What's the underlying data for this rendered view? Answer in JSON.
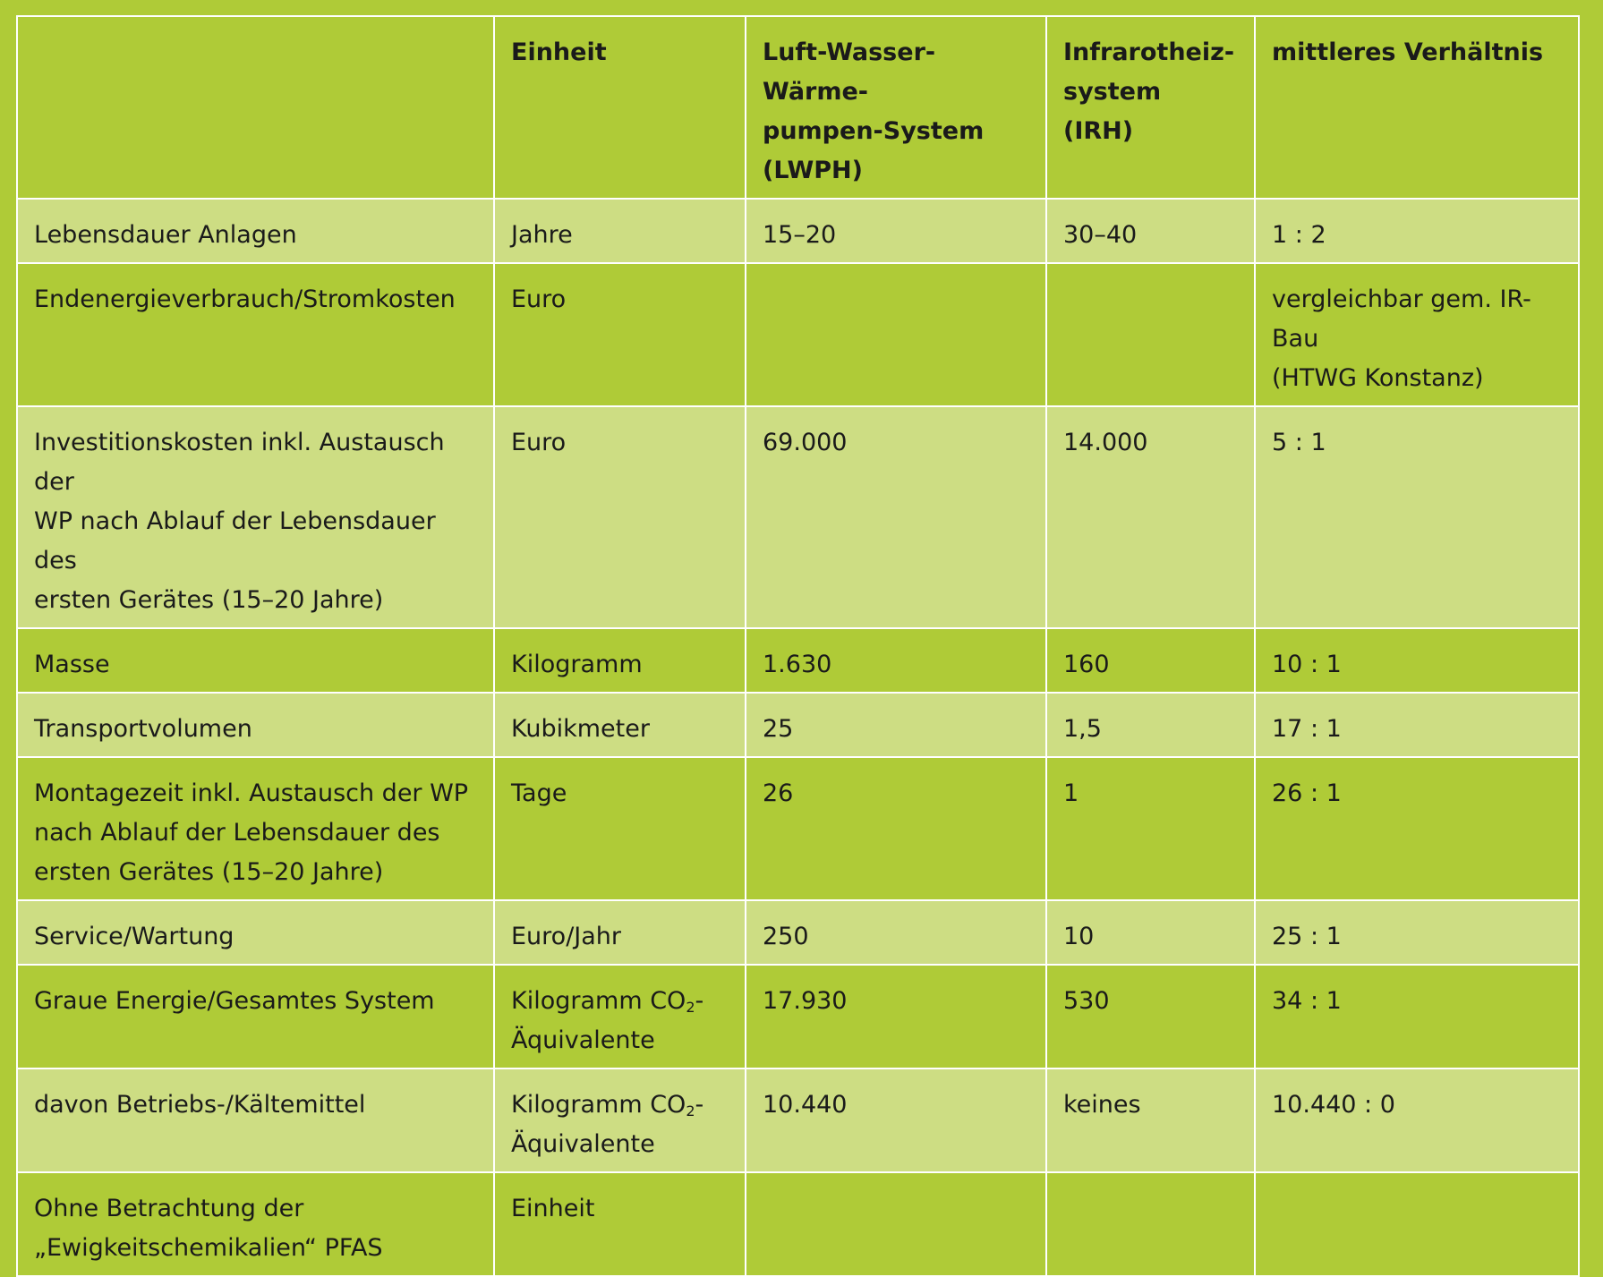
{
  "header": {
    "col0": "",
    "col1": "Einheit",
    "col2_lines": [
      "Luft-Wasser-Wärme-",
      "pumpen-System",
      "(LWPH)"
    ],
    "col3_lines": [
      "Infrarotheiz-",
      "system (IRH)"
    ],
    "col4": "mittleres Verhältnis"
  },
  "rows": [
    {
      "label_lines": [
        "Lebensdauer Anlagen"
      ],
      "unit": "Jahre",
      "lwph": "15–20",
      "irh": "30–40",
      "ratio_lines": [
        "1 : 2"
      ]
    },
    {
      "label_lines": [
        "Endenergieverbrauch/Stromkosten"
      ],
      "unit": "Euro",
      "lwph": "",
      "irh": "",
      "ratio_lines": [
        "vergleichbar gem. IR-Bau",
        "(HTWG Konstanz)"
      ]
    },
    {
      "label_lines": [
        "Investitionskosten inkl. Austausch der",
        "WP nach Ablauf der Lebensdauer des",
        "ersten Gerätes (15–20 Jahre)"
      ],
      "unit": "Euro",
      "lwph": "69.000",
      "irh": "14.000",
      "ratio_lines": [
        "5 : 1"
      ]
    },
    {
      "label_lines": [
        "Masse"
      ],
      "unit": "Kilogramm",
      "lwph": "1.630",
      "irh": "160",
      "ratio_lines": [
        "10 : 1"
      ]
    },
    {
      "label_lines": [
        "Transportvolumen"
      ],
      "unit": "Kubikmeter",
      "lwph": "25",
      "irh": "1,5",
      "ratio_lines": [
        "17 : 1"
      ]
    },
    {
      "label_lines": [
        "Montagezeit inkl. Austausch der WP",
        "nach Ablauf der Lebensdauer des",
        "ersten Gerätes (15–20 Jahre)"
      ],
      "unit": "Tage",
      "lwph": "26",
      "irh": "1",
      "ratio_lines": [
        "26 : 1"
      ]
    },
    {
      "label_lines": [
        "Service/Wartung"
      ],
      "unit": "Euro/Jahr",
      "lwph": "250",
      "irh": "10",
      "ratio_lines": [
        "25 : 1"
      ]
    },
    {
      "label_lines": [
        "Graue Energie/Gesamtes System"
      ],
      "unit_pre": "Kilogramm CO",
      "unit_sub": "2",
      "unit_post": "-",
      "unit_line2": "Äquivalente",
      "lwph": "17.930",
      "irh": "530",
      "ratio_lines": [
        "34 : 1"
      ]
    },
    {
      "label_lines": [
        "davon Betriebs-/Kältemittel"
      ],
      "unit_pre": "Kilogramm CO",
      "unit_sub": "2",
      "unit_post": "-",
      "unit_line2": "Äquivalente",
      "lwph": "10.440",
      "irh": "keines",
      "ratio_lines": [
        "10.440 : 0"
      ]
    },
    {
      "label_lines": [
        "Ohne Betrachtung der",
        "„Ewigkeitschemikalien“ PFAS"
      ],
      "unit": "Einheit",
      "lwph": "",
      "irh": "",
      "ratio_lines": [
        ""
      ]
    }
  ]
}
